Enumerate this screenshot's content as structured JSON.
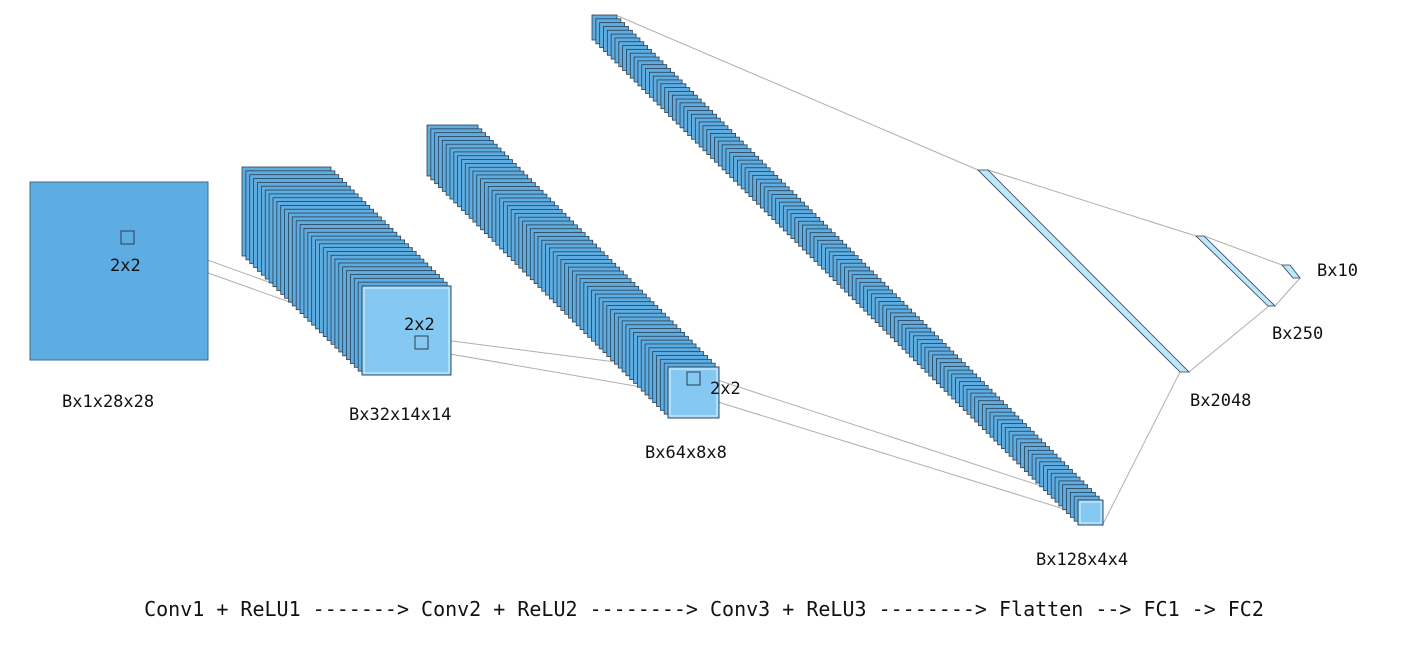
{
  "layers": [
    {
      "id": "input",
      "shape": "Bx1x28x28"
    },
    {
      "id": "conv1",
      "shape": "Bx32x14x14"
    },
    {
      "id": "conv2",
      "shape": "Bx64x8x8"
    },
    {
      "id": "conv3",
      "shape": "Bx128x4x4"
    },
    {
      "id": "flatten",
      "shape": "Bx2048"
    },
    {
      "id": "fc1",
      "shape": "Bx250"
    },
    {
      "id": "fc2",
      "shape": "Bx10"
    }
  ],
  "kernel_labels": [
    "2x2",
    "2x2",
    "2x2"
  ],
  "pipeline_text": "Conv1 + ReLU1 -------> Conv2 + ReLU2 --------> Conv3 + ReLU3 --------> Flatten --> FC1 -> FC2",
  "colors": {
    "feature_map": "#5DADE2",
    "feature_map_front": "#85C9F2",
    "dense": "#BFE6FA",
    "edge": "#2C3E50",
    "connector": "#B0B0B0"
  }
}
